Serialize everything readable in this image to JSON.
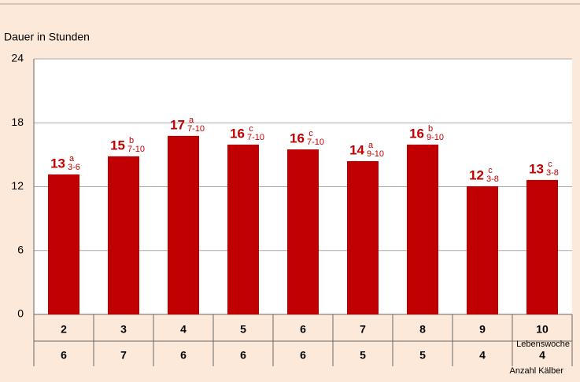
{
  "chart_data": {
    "type": "bar",
    "y_label": "Dauer in Stunden",
    "categories": [
      "2",
      "3",
      "4",
      "5",
      "6",
      "7",
      "8",
      "9",
      "10"
    ],
    "category_label": "Lebenswoche",
    "counts": [
      "6",
      "7",
      "6",
      "6",
      "6",
      "5",
      "5",
      "4",
      "4"
    ],
    "counts_label": "Anzahl Kälber",
    "values": [
      13.15,
      14.85,
      16.77,
      15.95,
      15.5,
      14.4,
      15.95,
      12.04,
      12.63
    ],
    "value_labels": [
      "13",
      "15",
      "17",
      "16",
      "16",
      "14",
      "16",
      "12",
      "13"
    ],
    "groups": [
      "a",
      "b",
      "a",
      "c",
      "c",
      "a",
      "b",
      "c",
      "c"
    ],
    "ranges": [
      "3-6",
      "7-10",
      "7-10",
      "7-10",
      "7-10",
      "9-10",
      "9-10",
      "3-8",
      "3-8"
    ],
    "color": "#c00000",
    "ylim": [
      0,
      24
    ],
    "yticks": [
      0,
      6,
      12,
      18,
      24
    ],
    "grid": true
  }
}
